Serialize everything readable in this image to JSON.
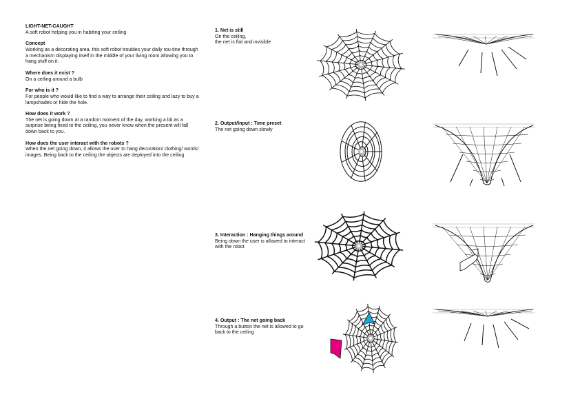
{
  "intro": {
    "title": "LIGHT-NET-CAUGHT",
    "subtitle": "A soft robot helping you in habiting your ceiling",
    "sections": [
      {
        "heading": "Concept",
        "text": "Working as a decorating area, this soft robot troubles your daily rou-tine through a mechanism displaying itself in the middle of your living room allowing you to hang stuff on it."
      },
      {
        "heading": "Where does it exist ?",
        "text": "On a ceiling around a bulb"
      },
      {
        "heading": "For who is it ?",
        "text": "For people who would like to find a way to arrange their ceiling and lazy to buy a lampshades or hide the hole."
      },
      {
        "heading": "How does it work ?",
        "text": "The net is going down at a random moment of the day, working a bit as a surprise being fixed to the ceiling, you never know when the present will fall down back to you."
      },
      {
        "heading": "How does the user interact with the robots ?",
        "text": "When the net going down, it allows the user to hang decoration/ clothing/ words/ images. Being back to the ceiling the objects are deployed into the ceiling"
      }
    ]
  },
  "steps": [
    {
      "title": "1. Net is still",
      "lines": [
        "On the ceiling,",
        "the net is flat and invisible"
      ]
    },
    {
      "title": "2. Output/Input : Time preset",
      "lines": [
        "The net going down slowly"
      ]
    },
    {
      "title": "3. Interaction : Hanging things around",
      "lines": [
        "Being down the user is allowed to interact",
        "with the robot"
      ]
    },
    {
      "title": "4. Output : The net going back",
      "lines": [
        "Through a button the net is allowed to go",
        "back to the ceiling"
      ]
    }
  ],
  "colors": {
    "ink": "#111111",
    "hub": "#bbbbbb",
    "magenta": "#e6007e",
    "cyan": "#1aa7e0"
  }
}
